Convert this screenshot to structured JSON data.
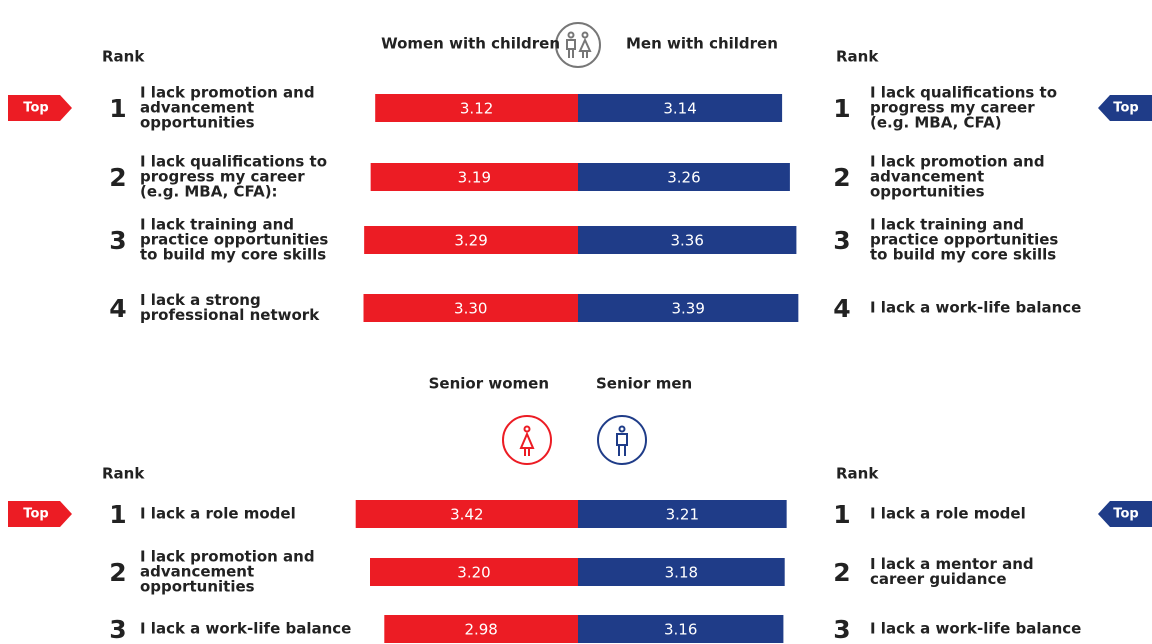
{
  "chart_data": [
    {
      "type": "butterfly",
      "rank_label": "Rank",
      "top_label": "Top",
      "series": [
        {
          "name": "Women with children",
          "color": "#ec1c24",
          "ranks": [
            1,
            2,
            3,
            4
          ],
          "items": [
            [
              "I lack promotion and",
              "advancement",
              "opportunities"
            ],
            [
              "I lack qualifications to",
              "progress my career",
              "(e.g.  MBA, CFA):"
            ],
            [
              "I lack training and",
              "practice opportunities",
              "to build my core skills"
            ],
            [
              "I lack a strong",
              "professional network"
            ]
          ],
          "values": [
            3.12,
            3.19,
            3.29,
            3.3
          ],
          "value_labels": [
            "3.12",
            "3.19",
            "3.29",
            "3.30"
          ]
        },
        {
          "name": "Men with children",
          "color": "#1f3c88",
          "ranks": [
            1,
            2,
            3,
            4
          ],
          "items": [
            [
              "I lack qualifications to",
              "progress my career",
              "(e.g.  MBA, CFA)"
            ],
            [
              "I lack promotion and",
              "advancement",
              "opportunities"
            ],
            [
              "I lack training and",
              "practice opportunities",
              "to build my core skills"
            ],
            [
              "I lack a work-life balance"
            ]
          ],
          "values": [
            3.14,
            3.26,
            3.36,
            3.39
          ],
          "value_labels": [
            "3.14",
            "3.26",
            "3.36",
            "3.39"
          ]
        }
      ]
    },
    {
      "type": "butterfly",
      "rank_label": "Rank",
      "top_label": "Top",
      "series": [
        {
          "name": "Senior women",
          "color": "#ec1c24",
          "ranks": [
            1,
            2,
            3
          ],
          "items": [
            [
              "I lack a role model"
            ],
            [
              "I lack promotion and",
              "advancement",
              "opportunities"
            ],
            [
              "I lack a work-life balance"
            ]
          ],
          "values": [
            3.42,
            3.2,
            2.98
          ],
          "value_labels": [
            "3.42",
            "3.20",
            "2.98"
          ]
        },
        {
          "name": "Senior men",
          "color": "#1f3c88",
          "ranks": [
            1,
            2,
            3
          ],
          "items": [
            [
              "I lack a role model"
            ],
            [
              "I lack a mentor and",
              "career guidance"
            ],
            [
              "I lack a work-life balance"
            ]
          ],
          "values": [
            3.21,
            3.18,
            3.16
          ],
          "value_labels": [
            "3.21",
            "3.18",
            "3.16"
          ]
        }
      ]
    }
  ]
}
